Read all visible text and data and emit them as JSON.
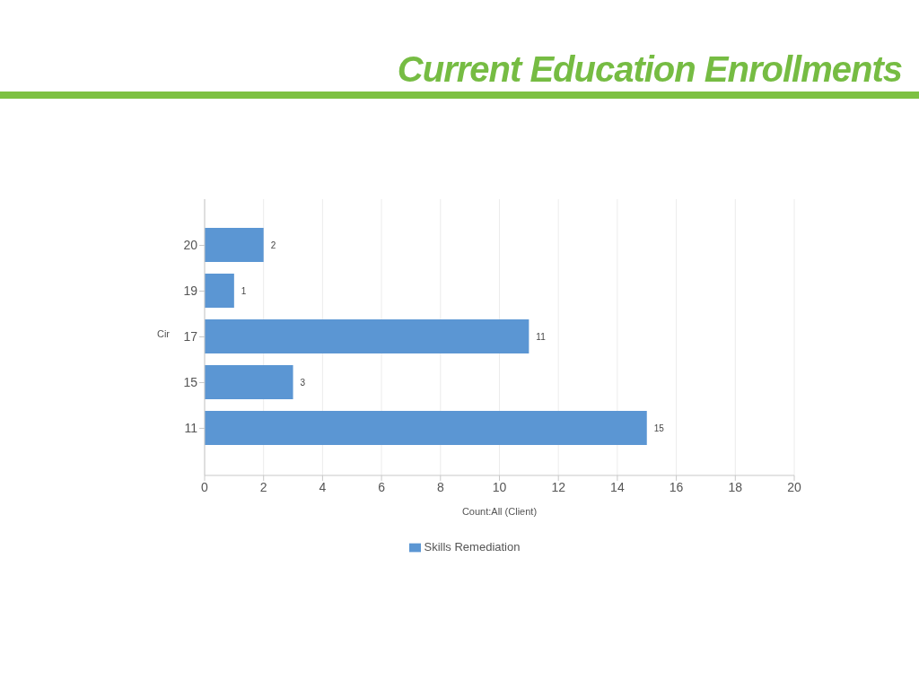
{
  "chart_data": {
    "type": "bar",
    "orientation": "horizontal",
    "title": "Current Education Enrollments",
    "xlabel": "Count:All (Client)",
    "ylabel": "Cir",
    "categories": [
      "20",
      "19",
      "17",
      "15",
      "11"
    ],
    "series": [
      {
        "name": "Skills Remediation",
        "color": "#5b96d3",
        "values": [
          2,
          1,
          11,
          3,
          15
        ]
      }
    ],
    "xlim": [
      0,
      20
    ],
    "xticks": [
      0,
      2,
      4,
      6,
      8,
      10,
      12,
      14,
      16,
      18,
      20
    ],
    "grid": "x",
    "legend": "bottom",
    "data_labels": true
  }
}
